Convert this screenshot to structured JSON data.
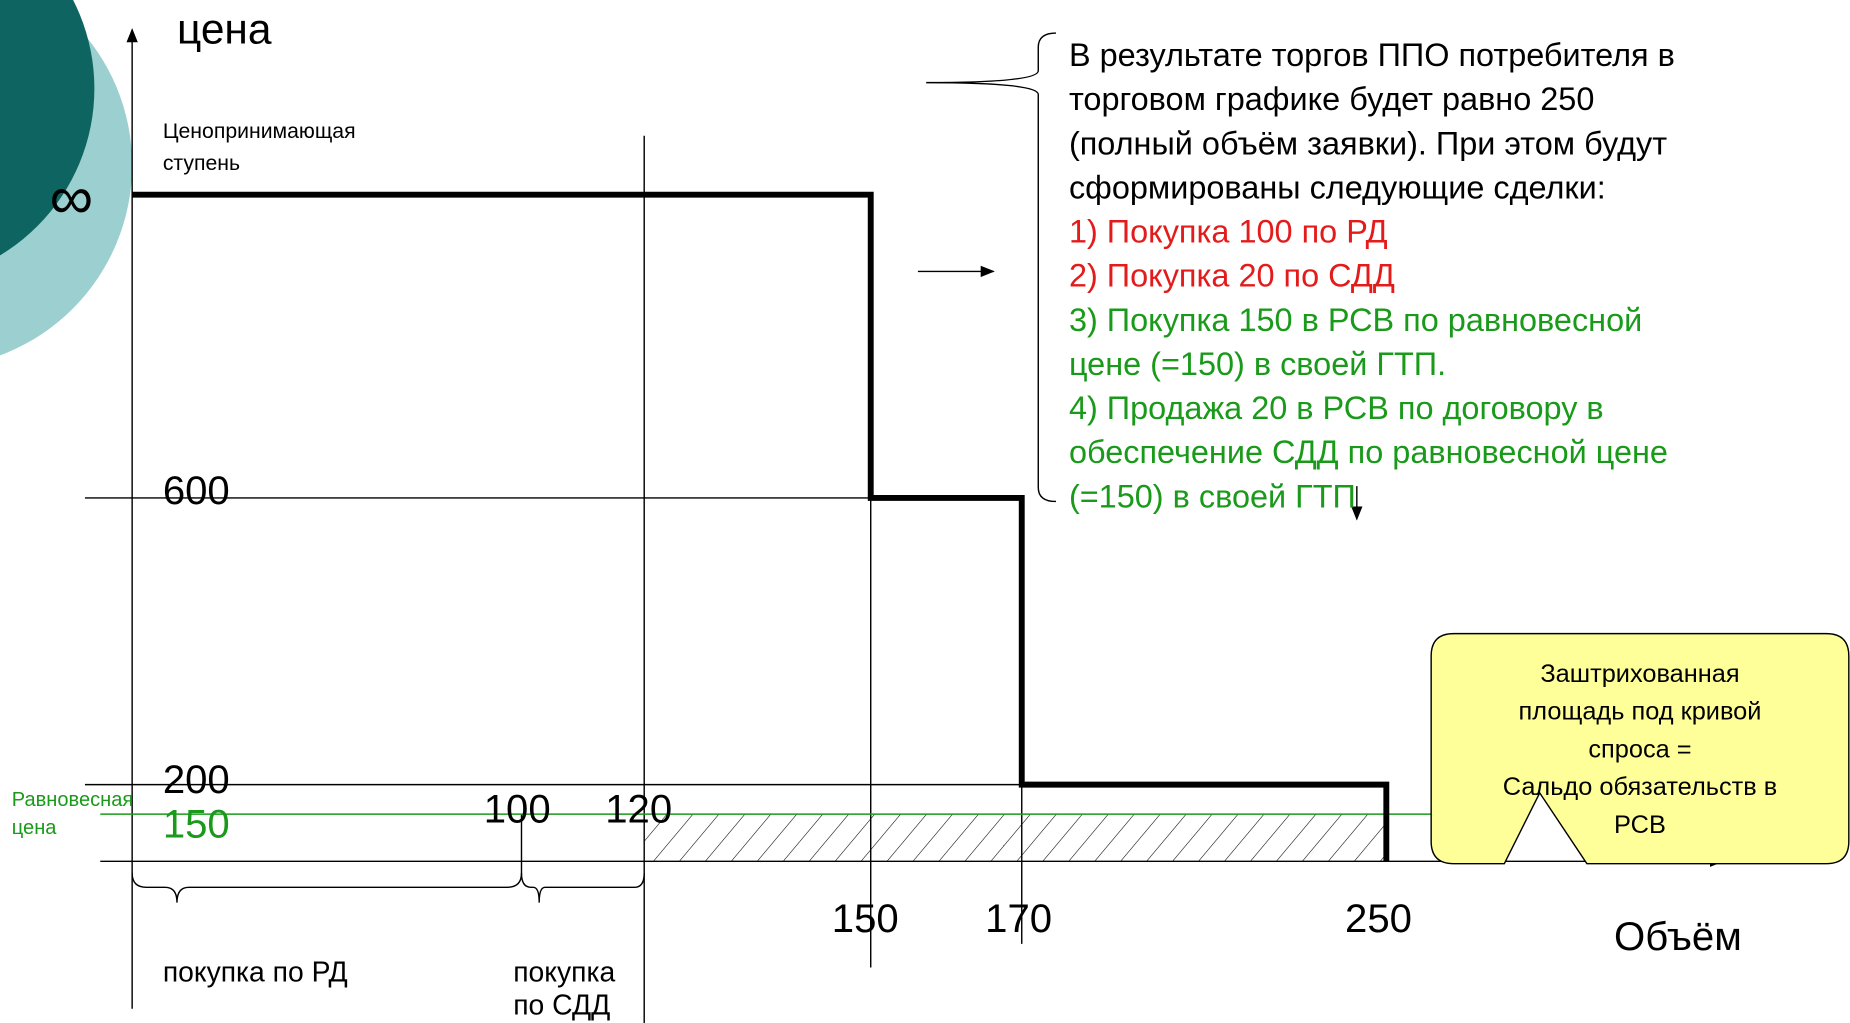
{
  "y_axis": {
    "title": "цена",
    "infinity": "∞",
    "step_label": [
      "Ценопринимающая",
      "ступень"
    ],
    "labels": [
      "600",
      "200"
    ],
    "equilibrium": {
      "value": "150",
      "label": [
        "Равновесная",
        "цена"
      ]
    }
  },
  "x_axis": {
    "title": "Объём",
    "top_labels": [
      "100",
      "120"
    ],
    "bottom_labels": [
      "150",
      "170",
      "250"
    ]
  },
  "braces": [
    {
      "label": [
        "покупка по РД"
      ]
    },
    {
      "label": [
        "покупка",
        "по СДД"
      ]
    }
  ],
  "description": {
    "intro": [
      "В результате торгов ППО потребителя в",
      "торговом графике будет равно 250",
      "(полный объём заявки). При этом будут",
      "сформированы следующие сделки:"
    ],
    "red": [
      "1) Покупка 100 по РД",
      "2) Покупка 20 по СДД"
    ],
    "green": [
      "3) Покупка 150 в РСВ по равновесной",
      "цене (=150) в своей ГТП.",
      "4) Продажа 20 в РСВ по договору в",
      "обеспечение СДД по равновесной цене",
      "(=150) в своей ГТП"
    ]
  },
  "callout": [
    "Заштрихованная",
    "площадь под кривой",
    "спроса =",
    "Сальдо обязательств в",
    "РСВ"
  ]
}
